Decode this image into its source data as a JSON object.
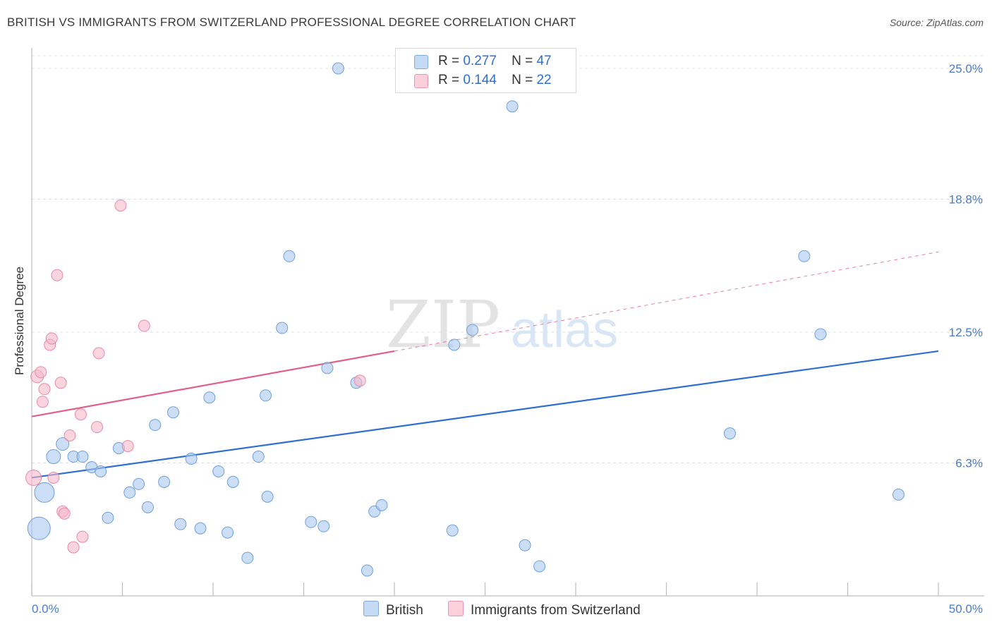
{
  "title": "BRITISH VS IMMIGRANTS FROM SWITZERLAND PROFESSIONAL DEGREE CORRELATION CHART",
  "source": "Source: ZipAtlas.com",
  "watermark": {
    "zip": "ZIP",
    "atlas": "atlas"
  },
  "legend": {
    "r_label": "R =",
    "n_label": "N =",
    "rows": [
      {
        "r": "0.277",
        "n": "47",
        "color": "#a8c8f0"
      },
      {
        "r": "0.144",
        "n": "22",
        "color": "#f7b8c9"
      }
    ]
  },
  "bottom_legend": [
    {
      "label": "British",
      "color": "#a8c8f0"
    },
    {
      "label": "Immigrants from Switzerland",
      "color": "#f7b8c9"
    }
  ],
  "chart_data": {
    "type": "scatter",
    "title": "BRITISH VS IMMIGRANTS FROM SWITZERLAND PROFESSIONAL DEGREE CORRELATION CHART",
    "xlabel": "",
    "ylabel": "Professional Degree",
    "xlim": [
      0,
      50
    ],
    "ylim": [
      0,
      26
    ],
    "x_tick_labels": [
      "0.0%",
      "50.0%"
    ],
    "y_ticks": [
      {
        "value": 6.3,
        "label": "6.3%"
      },
      {
        "value": 12.5,
        "label": "12.5%"
      },
      {
        "value": 18.8,
        "label": "18.8%"
      },
      {
        "value": 25.0,
        "label": "25.0%"
      }
    ],
    "grid": true,
    "legend_position": "top-center",
    "series": [
      {
        "name": "British",
        "color": "#a8c8f0",
        "stroke": "#6f9fdc",
        "trend": {
          "x": [
            0,
            50
          ],
          "y": [
            5.6,
            11.6
          ],
          "color": "#2e6fd0",
          "style": "solid"
        },
        "points": [
          {
            "x": 0.4,
            "y": 3.2,
            "s": 16
          },
          {
            "x": 0.7,
            "y": 4.9,
            "s": 14
          },
          {
            "x": 1.2,
            "y": 6.6,
            "s": 10
          },
          {
            "x": 1.7,
            "y": 7.2,
            "s": 9
          },
          {
            "x": 2.3,
            "y": 6.6,
            "s": 8
          },
          {
            "x": 2.8,
            "y": 6.6,
            "s": 8
          },
          {
            "x": 3.3,
            "y": 6.1,
            "s": 8
          },
          {
            "x": 3.8,
            "y": 5.9,
            "s": 8
          },
          {
            "x": 4.2,
            "y": 3.7,
            "s": 8
          },
          {
            "x": 4.8,
            "y": 7.0,
            "s": 8
          },
          {
            "x": 5.4,
            "y": 4.9,
            "s": 8
          },
          {
            "x": 5.9,
            "y": 5.3,
            "s": 8
          },
          {
            "x": 6.4,
            "y": 4.2,
            "s": 8
          },
          {
            "x": 6.8,
            "y": 8.1,
            "s": 8
          },
          {
            "x": 7.3,
            "y": 5.4,
            "s": 8
          },
          {
            "x": 7.8,
            "y": 8.7,
            "s": 8
          },
          {
            "x": 8.2,
            "y": 3.4,
            "s": 8
          },
          {
            "x": 8.8,
            "y": 6.5,
            "s": 8
          },
          {
            "x": 9.3,
            "y": 3.2,
            "s": 8
          },
          {
            "x": 9.8,
            "y": 9.4,
            "s": 8
          },
          {
            "x": 10.3,
            "y": 5.9,
            "s": 8
          },
          {
            "x": 10.8,
            "y": 3.0,
            "s": 8
          },
          {
            "x": 11.1,
            "y": 5.4,
            "s": 8
          },
          {
            "x": 11.9,
            "y": 1.8,
            "s": 8
          },
          {
            "x": 12.5,
            "y": 6.6,
            "s": 8
          },
          {
            "x": 12.9,
            "y": 9.5,
            "s": 8
          },
          {
            "x": 13.0,
            "y": 4.7,
            "s": 8
          },
          {
            "x": 13.8,
            "y": 12.7,
            "s": 8
          },
          {
            "x": 14.2,
            "y": 16.1,
            "s": 8
          },
          {
            "x": 15.4,
            "y": 3.5,
            "s": 8
          },
          {
            "x": 16.1,
            "y": 3.3,
            "s": 8
          },
          {
            "x": 16.3,
            "y": 10.8,
            "s": 8
          },
          {
            "x": 16.9,
            "y": 25.0,
            "s": 8
          },
          {
            "x": 17.9,
            "y": 10.1,
            "s": 8
          },
          {
            "x": 18.5,
            "y": 1.2,
            "s": 8
          },
          {
            "x": 18.9,
            "y": 4.0,
            "s": 8
          },
          {
            "x": 19.3,
            "y": 4.3,
            "s": 8
          },
          {
            "x": 23.2,
            "y": 3.1,
            "s": 8
          },
          {
            "x": 23.3,
            "y": 11.9,
            "s": 8
          },
          {
            "x": 24.3,
            "y": 12.6,
            "s": 8
          },
          {
            "x": 26.5,
            "y": 23.2,
            "s": 8
          },
          {
            "x": 27.2,
            "y": 2.4,
            "s": 8
          },
          {
            "x": 28.0,
            "y": 1.4,
            "s": 8
          },
          {
            "x": 38.5,
            "y": 7.7,
            "s": 8
          },
          {
            "x": 42.6,
            "y": 16.1,
            "s": 8
          },
          {
            "x": 43.5,
            "y": 12.4,
            "s": 8
          },
          {
            "x": 47.8,
            "y": 4.8,
            "s": 8
          }
        ]
      },
      {
        "name": "Immigrants from Switzerland",
        "color": "#f7b8c9",
        "stroke": "#e88aa6",
        "trend": {
          "x": [
            0,
            20
          ],
          "y": [
            8.5,
            11.6
          ],
          "x_dash": [
            20,
            50
          ],
          "y_dash": [
            11.6,
            16.3
          ],
          "color": "#e0608a",
          "style": "solid+dashed"
        },
        "points": [
          {
            "x": 0.1,
            "y": 5.6,
            "s": 11
          },
          {
            "x": 0.3,
            "y": 10.4,
            "s": 9
          },
          {
            "x": 0.5,
            "y": 10.6,
            "s": 8
          },
          {
            "x": 0.6,
            "y": 9.2,
            "s": 8
          },
          {
            "x": 0.7,
            "y": 9.8,
            "s": 8
          },
          {
            "x": 1.0,
            "y": 11.9,
            "s": 8
          },
          {
            "x": 1.1,
            "y": 12.2,
            "s": 8
          },
          {
            "x": 1.2,
            "y": 5.6,
            "s": 8
          },
          {
            "x": 1.4,
            "y": 15.2,
            "s": 8
          },
          {
            "x": 1.6,
            "y": 10.1,
            "s": 8
          },
          {
            "x": 1.7,
            "y": 4.0,
            "s": 8
          },
          {
            "x": 1.8,
            "y": 3.9,
            "s": 8
          },
          {
            "x": 2.1,
            "y": 7.6,
            "s": 8
          },
          {
            "x": 2.3,
            "y": 2.3,
            "s": 8
          },
          {
            "x": 2.7,
            "y": 8.6,
            "s": 8
          },
          {
            "x": 2.8,
            "y": 2.8,
            "s": 8
          },
          {
            "x": 3.6,
            "y": 8.0,
            "s": 8
          },
          {
            "x": 3.7,
            "y": 11.5,
            "s": 8
          },
          {
            "x": 4.9,
            "y": 18.5,
            "s": 8
          },
          {
            "x": 5.3,
            "y": 7.1,
            "s": 8
          },
          {
            "x": 6.2,
            "y": 12.8,
            "s": 8
          },
          {
            "x": 18.1,
            "y": 10.2,
            "s": 8
          }
        ]
      }
    ]
  }
}
